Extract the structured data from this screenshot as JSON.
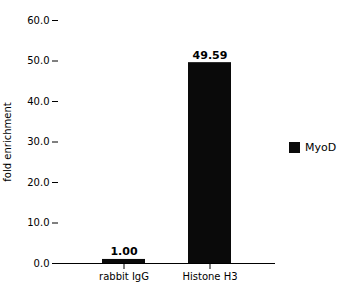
{
  "chart_data": {
    "type": "bar",
    "categories": [
      "rabbit IgG",
      "Histone H3"
    ],
    "series": [
      {
        "name": "MyoD",
        "color": "#0a0a0a",
        "values": [
          1.0,
          49.59
        ],
        "value_labels": [
          "1.00",
          "49.59"
        ]
      }
    ],
    "ylabel": "fold enrichment",
    "ylim": [
      0,
      60
    ],
    "yticks": [
      {
        "value": 0,
        "label": "0.0"
      },
      {
        "value": 10,
        "label": "10.0"
      },
      {
        "value": 20,
        "label": "20.0"
      },
      {
        "value": 30,
        "label": "30.0"
      },
      {
        "value": 40,
        "label": "40.0"
      },
      {
        "value": 50,
        "label": "50.0"
      },
      {
        "value": 60,
        "label": "60.0"
      }
    ],
    "data_labels": true,
    "legend": "right"
  }
}
